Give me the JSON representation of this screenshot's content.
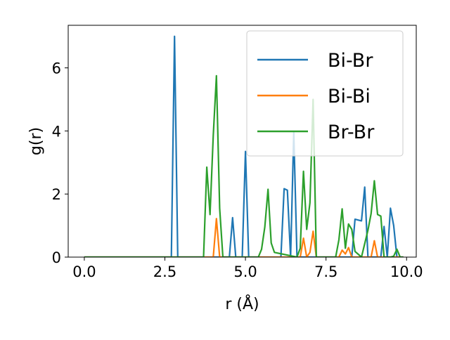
{
  "chart_data": {
    "type": "line",
    "xlabel": "r (Å)",
    "ylabel": "g(r)",
    "xlim": [
      -0.5,
      10.3
    ],
    "ylim": [
      0,
      7.35
    ],
    "xticks": [
      0.0,
      2.5,
      5.0,
      7.5,
      10.0
    ],
    "xtick_labels": [
      "0.0",
      "2.5",
      "5.0",
      "7.5",
      "10.0"
    ],
    "yticks": [
      0,
      2,
      4,
      6
    ],
    "ytick_labels": [
      "0",
      "2",
      "4",
      "6"
    ],
    "grid": false,
    "legend_position": "top-right",
    "series": [
      {
        "name": "Bi-Br",
        "color": "#1f77b4",
        "x": [
          0,
          2.7,
          2.8,
          2.9,
          3.0,
          4.5,
          4.6,
          4.7,
          4.9,
          5.0,
          5.1,
          6.1,
          6.2,
          6.3,
          6.4,
          6.5,
          6.6,
          7.1,
          8.1,
          8.3,
          8.4,
          8.6,
          8.7,
          8.8,
          9.1,
          9.2,
          9.3,
          9.4,
          9.5,
          9.6,
          9.7,
          9.8,
          9.9
        ],
        "y": [
          0,
          0,
          7.0,
          0,
          0,
          0,
          1.25,
          0,
          0,
          3.35,
          0,
          0,
          2.17,
          2.12,
          0,
          3.95,
          0,
          0,
          0,
          0,
          1.2,
          1.15,
          2.22,
          0,
          0,
          0,
          0.97,
          0,
          1.55,
          1.0,
          0,
          0,
          0
        ]
      },
      {
        "name": "Bi-Bi",
        "color": "#ff7f0e",
        "x": [
          0,
          4.0,
          4.1,
          4.2,
          6.7,
          6.8,
          6.9,
          7.0,
          7.1,
          7.2,
          7.9,
          8.0,
          8.1,
          8.2,
          8.3,
          8.9,
          9.0,
          9.1,
          9.9
        ],
        "y": [
          0,
          0,
          1.22,
          0,
          0,
          0.6,
          0,
          0.15,
          0.82,
          0,
          0,
          0.22,
          0.1,
          0.3,
          0,
          0,
          0.52,
          0,
          0
        ]
      },
      {
        "name": "Br-Br",
        "color": "#2ca02c",
        "x": [
          0,
          3.7,
          3.8,
          3.9,
          4.0,
          4.1,
          4.2,
          4.3,
          5.4,
          5.5,
          5.6,
          5.7,
          5.8,
          5.9,
          6.6,
          6.7,
          6.8,
          6.9,
          7.0,
          7.1,
          7.2,
          7.7,
          7.8,
          7.9,
          8.0,
          8.1,
          8.2,
          8.3,
          8.4,
          8.6,
          8.8,
          8.9,
          9.0,
          9.1,
          9.2,
          9.3,
          9.4,
          9.5,
          9.6,
          9.7,
          9.8,
          9.9
        ],
        "y": [
          0,
          0,
          2.85,
          1.35,
          3.85,
          5.75,
          1.55,
          0,
          0,
          0.25,
          0.95,
          2.15,
          0.45,
          0.15,
          0,
          0.28,
          2.72,
          0.88,
          1.72,
          5.0,
          0,
          0,
          0,
          0.55,
          1.53,
          0.28,
          1.05,
          0.88,
          0.18,
          0,
          0.85,
          1.38,
          2.42,
          1.35,
          1.3,
          0,
          0,
          0,
          0.03,
          0.25,
          0,
          0
        ]
      }
    ]
  }
}
